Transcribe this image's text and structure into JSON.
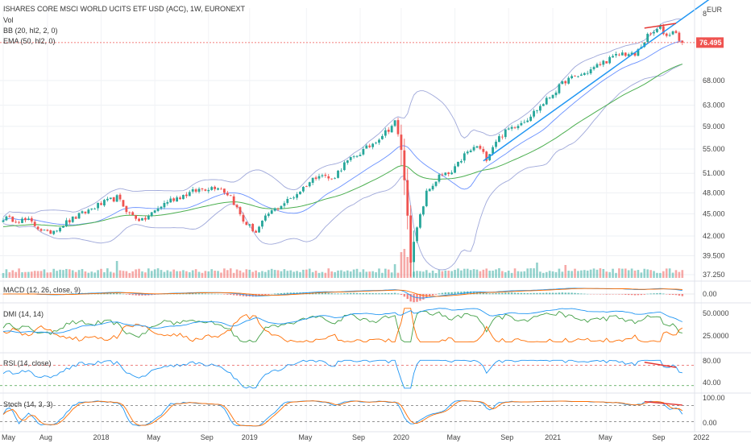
{
  "header": {
    "title": "ISHARES CORE MSCI WORLD UCITS ETF USD (ACC), 1W, EURONEXT",
    "indicators": [
      "Vol",
      "BB (20, hl2, 2, 0)",
      "EMA (50, hl2, 0)"
    ]
  },
  "price_axis": {
    "currency": "EUR",
    "last_price": "76.495",
    "last_price_value": 76.495,
    "top_tick": "8"
  },
  "colors": {
    "up": "#26a69a",
    "down": "#ef5350",
    "bb": "#9fa8da",
    "ema": "#4caf50",
    "macd_line": "#2196f3",
    "signal_line": "#ff6d00",
    "trendline": "#2196f3",
    "divergence": "#e53935",
    "plus_di": "#43a047",
    "minus_di": "#ff6d00",
    "adx": "#2196f3",
    "pane_bg": "#f0f3fa"
  },
  "panes": {
    "macd": {
      "label": "MACD (12, 26, close, 9)",
      "ticks": [
        "0.00"
      ]
    },
    "dmi": {
      "label": "DMI (14, 14)",
      "ticks": [
        "50.0000",
        "25.0000"
      ]
    },
    "rsi": {
      "label": "RSI (14, close)",
      "ticks": [
        "80.00",
        "40.00"
      ]
    },
    "stoch": {
      "label": "Stoch (14, 3, 3)",
      "ticks": [
        "100.00",
        "0.00"
      ]
    }
  },
  "chart_data": {
    "type": "candlestick",
    "title": "ISHARES CORE MSCI WORLD UCITS ETF USD (ACC), 1W, EURONEXT",
    "interval": "1W",
    "y_scale": "log",
    "y_ticks": [
      37.25,
      39.5,
      42.0,
      45.0,
      48.0,
      51.0,
      55.0,
      59.0,
      63.0,
      68.0
    ],
    "y_tick_labels": [
      "37.250",
      "39.500",
      "42.000",
      "45.000",
      "48.000",
      "51.000",
      "55.000",
      "59.000",
      "63.000",
      "68.000"
    ],
    "x_tick_labels": [
      "May",
      "Aug",
      "2018",
      "May",
      "Sep",
      "2019",
      "May",
      "Sep",
      "2020",
      "May",
      "Sep",
      "2021",
      "May",
      "Sep",
      "2022"
    ],
    "price_anchors": [
      [
        0,
        44.4
      ],
      [
        8,
        44.0
      ],
      [
        14,
        42.3
      ],
      [
        20,
        43.8
      ],
      [
        30,
        46.2
      ],
      [
        36,
        47.3
      ],
      [
        40,
        45.0
      ],
      [
        44,
        44.0
      ],
      [
        52,
        46.8
      ],
      [
        62,
        48.5
      ],
      [
        68,
        49.0
      ],
      [
        72,
        47.5
      ],
      [
        76,
        44.0
      ],
      [
        80,
        42.5
      ],
      [
        84,
        45.0
      ],
      [
        92,
        47.5
      ],
      [
        100,
        51.0
      ],
      [
        104,
        50.0
      ],
      [
        108,
        52.5
      ],
      [
        116,
        55.5
      ],
      [
        122,
        58.5
      ],
      [
        124,
        59.8
      ],
      [
        126,
        55.0
      ],
      [
        128,
        45.0
      ],
      [
        129,
        39.0
      ],
      [
        131,
        43.0
      ],
      [
        134,
        48.0
      ],
      [
        138,
        50.5
      ],
      [
        142,
        51.0
      ],
      [
        146,
        54.0
      ],
      [
        150,
        55.5
      ],
      [
        153,
        53.5
      ],
      [
        156,
        56.5
      ],
      [
        160,
        58.5
      ],
      [
        166,
        60.5
      ],
      [
        172,
        64.0
      ],
      [
        178,
        68.0
      ],
      [
        184,
        69.5
      ],
      [
        190,
        72.0
      ],
      [
        196,
        74.0
      ],
      [
        200,
        73.5
      ],
      [
        204,
        78.0
      ],
      [
        208,
        80.0
      ],
      [
        210,
        78.0
      ],
      [
        212,
        79.5
      ],
      [
        214,
        77.5
      ],
      [
        215,
        76.495
      ]
    ],
    "volume_spikes": [
      [
        36,
        2.1
      ],
      [
        124,
        1.7
      ],
      [
        126,
        3.2
      ],
      [
        127,
        3.6
      ],
      [
        128,
        2.6
      ],
      [
        129,
        2.0
      ],
      [
        169,
        1.9
      ],
      [
        178,
        1.6
      ]
    ],
    "annotations": [
      {
        "kind": "uptrend-line",
        "from": [
          152,
          53.0
        ],
        "to": [
          226,
          89.0
        ]
      },
      {
        "kind": "divergence-high",
        "from": [
          203,
          80.0
        ],
        "to": [
          213,
          81.2
        ]
      }
    ]
  }
}
